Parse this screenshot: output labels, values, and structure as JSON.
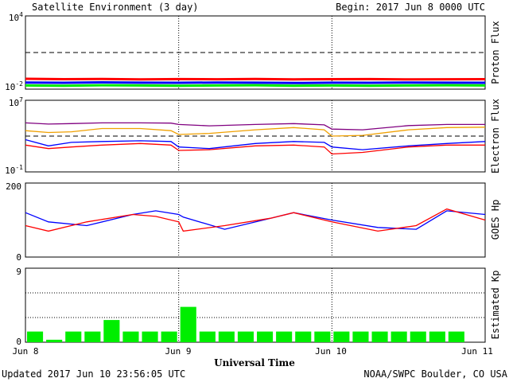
{
  "header": {
    "title": "Satellite Environment (3 day)",
    "begin": "Begin:  2017 Jun 8 0000 UTC"
  },
  "footer": {
    "updated": "Updated 2017 Jun 10 23:56:05 UTC",
    "credit": "NOAA/SWPC Boulder, CO USA"
  },
  "colors": {
    "red": "#ff0000",
    "blue": "#0000ff",
    "green": "#00ee00",
    "orange": "#f0a000",
    "purple": "#800080"
  },
  "chart_data": [
    {
      "type": "line",
      "ylabel": "Proton Flux",
      "yscale": "log",
      "ylim": [
        0.01,
        10000
      ],
      "yticks": [
        {
          "base": "10",
          "exp": "4"
        },
        {
          "base": "10",
          "exp": "-2"
        }
      ],
      "threshold": 10,
      "x_days": [
        0,
        0.25,
        0.5,
        0.75,
        1,
        1.25,
        1.5,
        1.75,
        2,
        2.25,
        2.5,
        2.75,
        3
      ],
      "series": [
        {
          "color": "red",
          "values": [
            0.07,
            0.065,
            0.068,
            0.062,
            0.066,
            0.064,
            0.067,
            0.063,
            0.065,
            0.066,
            0.062,
            0.064,
            0.065
          ]
        },
        {
          "color": "blue",
          "values": [
            0.035,
            0.033,
            0.036,
            0.034,
            0.033,
            0.035,
            0.034,
            0.032,
            0.034,
            0.033,
            0.035,
            0.034,
            0.033
          ]
        },
        {
          "color": "green",
          "values": [
            0.02,
            0.019,
            0.021,
            0.02,
            0.019,
            0.02,
            0.021,
            0.019,
            0.02,
            0.019,
            0.02,
            0.021,
            0.02
          ]
        }
      ]
    },
    {
      "type": "line",
      "ylabel": "Electron Flux",
      "yscale": "log",
      "ylim": [
        0.1,
        10000000
      ],
      "yticks": [
        {
          "base": "10",
          "exp": "7"
        },
        {
          "base": "10",
          "exp": "-1"
        }
      ],
      "threshold": 1000,
      "x_days": [
        0,
        0.15,
        0.3,
        0.5,
        0.75,
        0.95,
        1.0,
        1.2,
        1.5,
        1.75,
        1.95,
        2.0,
        2.2,
        2.5,
        2.75,
        3
      ],
      "series": [
        {
          "color": "purple",
          "values": [
            30000,
            22000,
            25000,
            30000,
            30000,
            28000,
            20000,
            14000,
            20000,
            25000,
            18000,
            6000,
            5000,
            15000,
            20000,
            20000
          ]
        },
        {
          "color": "orange",
          "values": [
            4000,
            2500,
            3000,
            7000,
            7000,
            4000,
            1500,
            2000,
            5000,
            9000,
            5000,
            1000,
            1200,
            5000,
            9000,
            10000
          ]
        },
        {
          "color": "blue",
          "values": [
            400,
            80,
            200,
            250,
            300,
            250,
            60,
            40,
            150,
            250,
            200,
            60,
            30,
            80,
            150,
            250
          ]
        },
        {
          "color": "red",
          "values": [
            100,
            40,
            60,
            100,
            150,
            100,
            25,
            30,
            80,
            100,
            60,
            10,
            15,
            60,
            100,
            100
          ]
        }
      ]
    },
    {
      "type": "line",
      "ylabel": "GOES Hp",
      "ylim": [
        0,
        200
      ],
      "yticks": [
        "200",
        "0"
      ],
      "x_days": [
        0,
        0.15,
        0.4,
        0.7,
        0.85,
        1.0,
        1.03,
        1.3,
        1.6,
        1.75,
        2.0,
        2.3,
        2.55,
        2.75,
        3
      ],
      "series": [
        {
          "color": "blue",
          "values": [
            120,
            95,
            85,
            115,
            125,
            115,
            108,
            75,
            105,
            120,
            100,
            80,
            75,
            125,
            115
          ]
        },
        {
          "color": "red",
          "values": [
            85,
            70,
            95,
            115,
            110,
            95,
            70,
            85,
            105,
            120,
            95,
            70,
            85,
            130,
            100
          ]
        }
      ]
    },
    {
      "type": "bar",
      "ylabel": "Estimated Kp",
      "ylim": [
        0,
        9
      ],
      "yticks": [
        "9",
        "0"
      ],
      "x_days_per_bar": 0.125,
      "bar_color": "green",
      "values": [
        1.3,
        0.3,
        1.3,
        1.3,
        2.7,
        1.3,
        1.3,
        1.3,
        4.3,
        1.3,
        1.3,
        1.3,
        1.3,
        1.3,
        1.3,
        1.3,
        1.3,
        1.3,
        1.3,
        1.3,
        1.3,
        1.3,
        1.3,
        0
      ]
    }
  ],
  "x_axis": {
    "label": "Universal Time",
    "ticks": [
      "Jun 8",
      "Jun 9",
      "Jun 10",
      "Jun 11"
    ]
  }
}
